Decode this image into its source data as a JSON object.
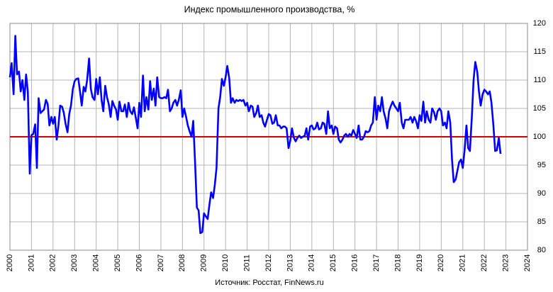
{
  "chart_data": {
    "type": "line",
    "title": "Индекс промышленного производства, %",
    "source": "Источник: Росстат, FinNews.ru",
    "xlim": [
      2000,
      2024
    ],
    "xticks": [
      2000,
      2001,
      2002,
      2003,
      2004,
      2005,
      2006,
      2007,
      2008,
      2009,
      2010,
      2011,
      2012,
      2013,
      2014,
      2015,
      2016,
      2017,
      2018,
      2019,
      2020,
      2021,
      2022,
      2023,
      2024
    ],
    "ylim": [
      80,
      120
    ],
    "yticks": [
      80,
      85,
      90,
      95,
      100,
      105,
      110,
      115,
      120
    ],
    "grid": true,
    "reference_line": {
      "value": 100,
      "color": "#d40000"
    },
    "x": [
      2000,
      2000.08,
      2000.17,
      2000.25,
      2000.33,
      2000.42,
      2000.5,
      2000.58,
      2000.67,
      2000.75,
      2000.83,
      2000.92,
      2001,
      2001.08,
      2001.17,
      2001.25,
      2001.33,
      2001.42,
      2001.5,
      2001.58,
      2001.67,
      2001.75,
      2001.83,
      2001.92,
      2002,
      2002.08,
      2002.17,
      2002.25,
      2002.33,
      2002.42,
      2002.5,
      2002.58,
      2002.67,
      2002.75,
      2002.83,
      2002.92,
      2003,
      2003.08,
      2003.17,
      2003.25,
      2003.33,
      2003.42,
      2003.5,
      2003.58,
      2003.67,
      2003.75,
      2003.83,
      2003.92,
      2004,
      2004.08,
      2004.17,
      2004.25,
      2004.33,
      2004.42,
      2004.5,
      2004.58,
      2004.67,
      2004.75,
      2004.83,
      2004.92,
      2005,
      2005.08,
      2005.17,
      2005.25,
      2005.33,
      2005.42,
      2005.5,
      2005.58,
      2005.67,
      2005.75,
      2005.83,
      2005.92,
      2006,
      2006.08,
      2006.17,
      2006.25,
      2006.33,
      2006.42,
      2006.5,
      2006.58,
      2006.67,
      2006.75,
      2006.83,
      2006.92,
      2007,
      2007.08,
      2007.17,
      2007.25,
      2007.33,
      2007.42,
      2007.5,
      2007.58,
      2007.67,
      2007.75,
      2007.83,
      2007.92,
      2008,
      2008.08,
      2008.17,
      2008.25,
      2008.33,
      2008.42,
      2008.5,
      2008.58,
      2008.67,
      2008.75,
      2008.83,
      2008.92,
      2009,
      2009.08,
      2009.17,
      2009.25,
      2009.33,
      2009.42,
      2009.5,
      2009.58,
      2009.67,
      2009.75,
      2009.83,
      2009.92,
      2010,
      2010.08,
      2010.17,
      2010.25,
      2010.33,
      2010.42,
      2010.5,
      2010.58,
      2010.67,
      2010.75,
      2010.83,
      2010.92,
      2011,
      2011.08,
      2011.17,
      2011.25,
      2011.33,
      2011.42,
      2011.5,
      2011.58,
      2011.67,
      2011.75,
      2011.83,
      2011.92,
      2012,
      2012.08,
      2012.17,
      2012.25,
      2012.33,
      2012.42,
      2012.5,
      2012.58,
      2012.67,
      2012.75,
      2012.83,
      2012.92,
      2013,
      2013.08,
      2013.17,
      2013.25,
      2013.33,
      2013.42,
      2013.5,
      2013.58,
      2013.67,
      2013.75,
      2013.83,
      2013.92,
      2014,
      2014.08,
      2014.17,
      2014.25,
      2014.33,
      2014.42,
      2014.5,
      2014.58,
      2014.67,
      2014.75,
      2014.83,
      2014.92,
      2015,
      2015.08,
      2015.17,
      2015.25,
      2015.33,
      2015.42,
      2015.5,
      2015.58,
      2015.67,
      2015.75,
      2015.83,
      2015.92,
      2016,
      2016.08,
      2016.17,
      2016.25,
      2016.33,
      2016.42,
      2016.5,
      2016.58,
      2016.67,
      2016.75,
      2016.83,
      2016.92,
      2017,
      2017.08,
      2017.17,
      2017.25,
      2017.33,
      2017.42,
      2017.5,
      2017.58,
      2017.67,
      2017.75,
      2017.83,
      2017.92,
      2018,
      2018.08,
      2018.17,
      2018.25,
      2018.33,
      2018.42,
      2018.5,
      2018.58,
      2018.67,
      2018.75,
      2018.83,
      2018.92,
      2019,
      2019.08,
      2019.17,
      2019.25,
      2019.33,
      2019.42,
      2019.5,
      2019.58,
      2019.67,
      2019.75,
      2019.83,
      2019.92,
      2020,
      2020.08,
      2020.17,
      2020.25,
      2020.33,
      2020.42,
      2020.5,
      2020.58,
      2020.67,
      2020.75,
      2020.83,
      2020.92,
      2021,
      2021.08,
      2021.17,
      2021.25,
      2021.33,
      2021.42,
      2021.5,
      2021.58,
      2021.67,
      2021.75,
      2021.83,
      2021.92,
      2022,
      2022.08,
      2022.17,
      2022.25,
      2022.33,
      2022.42,
      2022.5,
      2022.58,
      2022.67,
      2022.75
    ],
    "series": [
      {
        "color": "#0000ff",
        "values": [
          110.5,
          113,
          107.5,
          117.8,
          111,
          111.5,
          108,
          110,
          106.5,
          111,
          108,
          93.5,
          100.3,
          100.5,
          102.2,
          94.5,
          106.8,
          104.2,
          104.5,
          104.8,
          106.5,
          105.8,
          102,
          103.5,
          102.3,
          103.5,
          99.5,
          102,
          105.5,
          105.3,
          104.2,
          102.3,
          100.8,
          104,
          105.5,
          108.5,
          109.8,
          110.2,
          110.3,
          108,
          105.5,
          108.8,
          108,
          110,
          113.8,
          108.5,
          107,
          106.5,
          110.2,
          107.5,
          110.5,
          106.5,
          104.5,
          109,
          107,
          105.8,
          103.5,
          106.3,
          105.5,
          104.8,
          103,
          106.2,
          104.5,
          104.5,
          105.7,
          103.5,
          106,
          104.5,
          104,
          105.2,
          103.5,
          101.5,
          106,
          103.5,
          110.8,
          104.5,
          107,
          104.8,
          109.8,
          106.5,
          108.5,
          105.5,
          110.5,
          107,
          106.8,
          106.8,
          107,
          106.8,
          108.3,
          104.5,
          105,
          106,
          106.5,
          105.5,
          106.5,
          108.2,
          103.5,
          105,
          103.5,
          102,
          101,
          100,
          102.8,
          96,
          87.5,
          87,
          83,
          83.2,
          86.5,
          86,
          85.5,
          88,
          90.2,
          89.2,
          91.5,
          94.5,
          105,
          107,
          110.2,
          109,
          110.5,
          112.5,
          110.3,
          106,
          106.8,
          106,
          106.5,
          106.3,
          106.5,
          106.3,
          106.5,
          105.5,
          106,
          104.5,
          105.5,
          105.3,
          103.5,
          104.2,
          105.5,
          103.5,
          103.8,
          102.5,
          101.8,
          103,
          104,
          103.8,
          102.3,
          102.5,
          103.8,
          102,
          102,
          101.5,
          101.8,
          101.8,
          101.5,
          98,
          99.3,
          101.5,
          99.8,
          99.2,
          99.8,
          100.2,
          99.8,
          100,
          100.2,
          101.5,
          99.5,
          101.8,
          102,
          101.3,
          101.5,
          102.5,
          101.3,
          101.5,
          102.5,
          102.3,
          100.5,
          104.5,
          101.5,
          102,
          100.5,
          101.8,
          101.5,
          99.5,
          99,
          99.5,
          100.2,
          100.5,
          100,
          100.5,
          100.2,
          101.2,
          100.5,
          99.8,
          102,
          99.5,
          99.5,
          100,
          101,
          100.8,
          101,
          102,
          102.5,
          107,
          103,
          105.5,
          104.5,
          107,
          104.5,
          103.2,
          101.5,
          104.5,
          105.5,
          106.2,
          105.5,
          105,
          104.5,
          106,
          102.5,
          101.5,
          103,
          103,
          103,
          103.5,
          102.5,
          103.5,
          102.8,
          101.5,
          103.8,
          102.8,
          106.2,
          102.5,
          104.5,
          103,
          102.5,
          105,
          104.3,
          103,
          104.5,
          105,
          104.5,
          102,
          102.5,
          101.5,
          104.5,
          102.5,
          96,
          92,
          92.5,
          94,
          95.5,
          96,
          94.5,
          97.5,
          102,
          98,
          97.5,
          103.5,
          110,
          113.2,
          111.5,
          108,
          105.5,
          107.5,
          108.3,
          108,
          107.5,
          108,
          106,
          102,
          97.5,
          97.6,
          99.8,
          97
        ]
      }
    ]
  }
}
